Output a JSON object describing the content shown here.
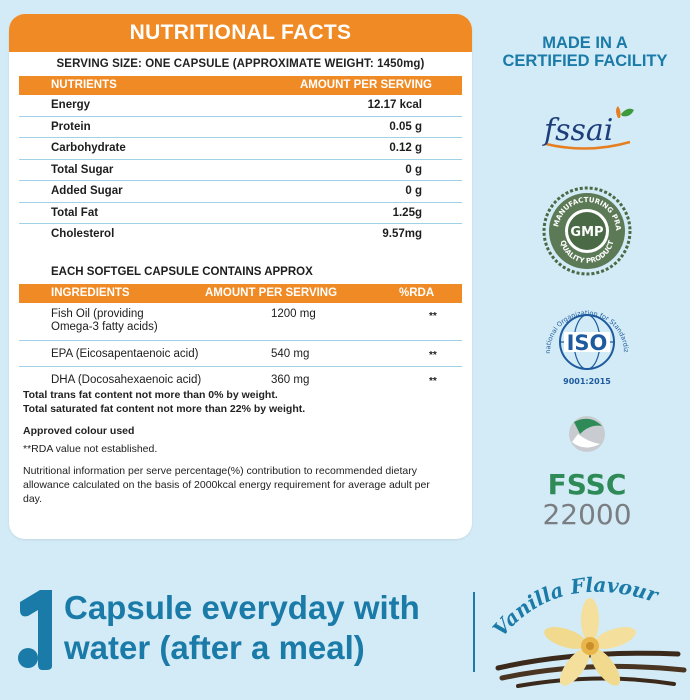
{
  "nutrition": {
    "title": "NUTRITIONAL FACTS",
    "serving": "SERVING SIZE: ONE CAPSULE (APPROXIMATE WEIGHT: 1450mg)",
    "header_left": "NUTRIENTS",
    "header_right": "AMOUNT PER SERVING",
    "rows": [
      {
        "name": "Energy",
        "value": "12.17 kcal"
      },
      {
        "name": "Protein",
        "value": "0.05 g"
      },
      {
        "name": "Carbohydrate",
        "value": "0.12 g"
      },
      {
        "name": "Total Sugar",
        "value": "0 g"
      },
      {
        "name": "Added Sugar",
        "value": "0 g"
      },
      {
        "name": "Total Fat",
        "value": "1.25g"
      },
      {
        "name": "Cholesterol",
        "value": "9.57mg"
      }
    ]
  },
  "ingredients": {
    "title": "EACH SOFTGEL CAPSULE CONTAINS APPROX",
    "header_ing": "INGREDIENTS",
    "header_amount": "AMOUNT PER SERVING",
    "header_rda": "%RDA",
    "rows": [
      {
        "name_line1": "Fish Oil (providing",
        "name_line2": "Omega-3 fatty acids)",
        "amount": "1200 mg",
        "rda": "**"
      },
      {
        "name_line1": "EPA (Eicosapentaenoic acid)",
        "name_line2": "",
        "amount": "540 mg",
        "rda": "**"
      },
      {
        "name_line1": "DHA (Docosahexaenoic acid)",
        "name_line2": "",
        "amount": "360 mg",
        "rda": "**"
      }
    ]
  },
  "notes": {
    "line1": "Total trans fat content not more than 0% by weight.",
    "line2": "Total saturated fat content not more than 22% by weight.",
    "colour": "Approved colour used",
    "rda": "**RDA value not established.",
    "info1": "Nutritional information per serve percentage(%) contribution to recommended dietary",
    "info2": "allowance calculated on the basis of 2000kcal energy requirement for average adult per",
    "info3": "day."
  },
  "certifications": {
    "title_line1": "MADE IN A",
    "title_line2": "CERTIFIED FACILITY",
    "fssai_text": "fssai",
    "gmp_text": "GMP",
    "gmp_ring_top": "GOOD MANUFACTURING PRACTICE",
    "gmp_ring_bottom": "QUALITY PRODUCT",
    "iso_text": "ISO",
    "iso_ring": "International Organization for Standardization",
    "iso_number": "9001:2015",
    "fssc_text": "FSSC",
    "fssc_number": "22000"
  },
  "usage": {
    "number": "1",
    "line1": "Capsule everyday with",
    "line2": "water (after a meal)"
  },
  "flavour": {
    "text": "Vanilla Flavour"
  },
  "colors": {
    "orange": "#f08a24",
    "blue": "#1a7aa8",
    "background": "#d3ebf6",
    "fssc_green": "#2e8b57"
  }
}
